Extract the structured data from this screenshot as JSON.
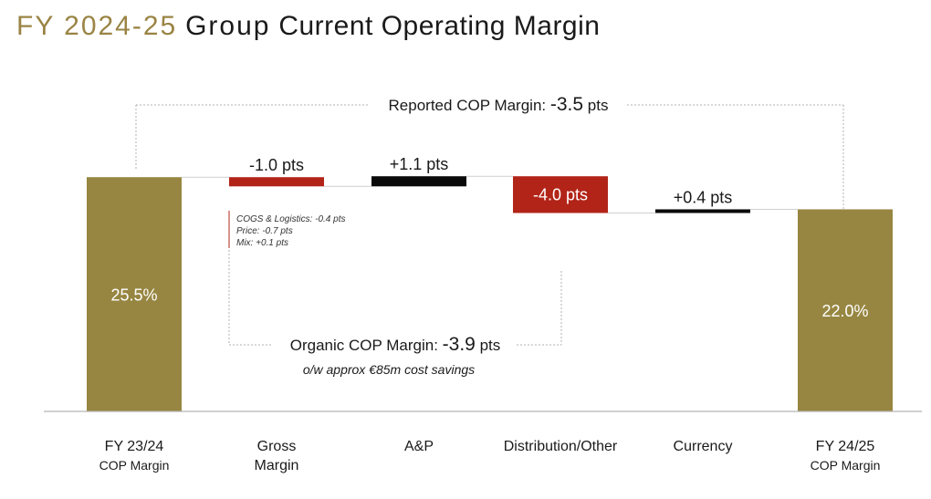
{
  "title": {
    "prefix": "FY 2024-25",
    "group": "Group",
    "rest": "Current Operating Margin"
  },
  "colors": {
    "gold": "#978641",
    "red": "#b22418",
    "black": "#0a0a0a",
    "title_gold": "#9a8444"
  },
  "chart_data": {
    "type": "bar",
    "subtype": "waterfall",
    "unit": "%",
    "categories": [
      [
        "FY 23/24",
        "COP Margin"
      ],
      [
        "Gross",
        "Margin"
      ],
      [
        "A&P"
      ],
      [
        "Distribution/Other"
      ],
      [
        "Currency"
      ],
      [
        "FY 24/25",
        "COP Margin"
      ]
    ],
    "bars": [
      {
        "kind": "total",
        "value": 25.5,
        "label": "25.5%",
        "color": "gold"
      },
      {
        "kind": "delta",
        "value": -1.0,
        "label": "-1.0 pts",
        "color": "red"
      },
      {
        "kind": "delta",
        "value": 1.1,
        "label": "+1.1 pts",
        "color": "black"
      },
      {
        "kind": "delta",
        "value": -4.0,
        "label": "-4.0 pts",
        "color": "red"
      },
      {
        "kind": "delta",
        "value": 0.4,
        "label": "+0.4 pts",
        "color": "black"
      },
      {
        "kind": "total",
        "value": 22.0,
        "label": "22.0%",
        "color": "gold"
      }
    ],
    "gross_margin_breakdown": [
      "COGS & Logistics: -0.4 pts",
      "Price: -0.7 pts",
      "Mix: +0.1 pts"
    ],
    "reported_bracket": {
      "label": "Reported COP Margin:",
      "value": "-3.5",
      "unit": "pts"
    },
    "organic_bracket": {
      "label": "Organic COP Margin:",
      "value": "-3.9",
      "unit": "pts",
      "note": "o/w approx €85m cost savings"
    }
  }
}
